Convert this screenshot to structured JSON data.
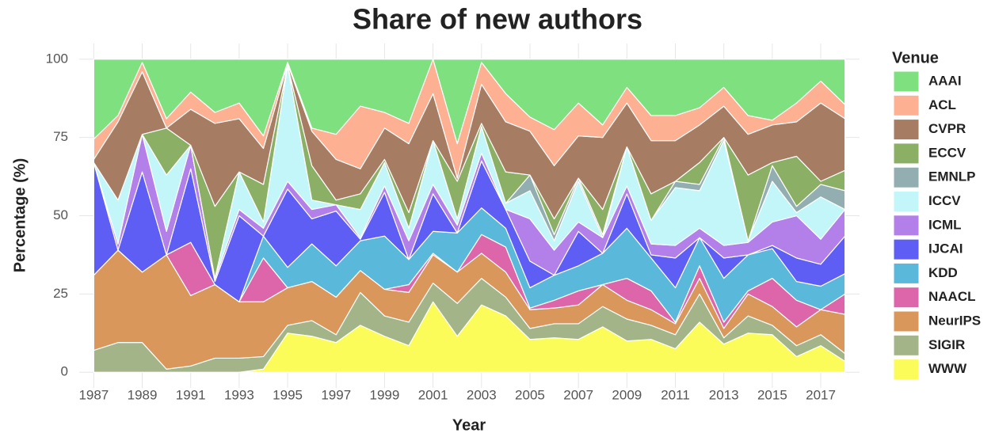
{
  "chart_data": {
    "type": "stacked_area",
    "title": "Share of new authors",
    "x_label": "Year",
    "y_label": "Percentage (%)",
    "legend_title": "Venue",
    "legend_position": "right",
    "grid": true,
    "x": [
      1987,
      1988,
      1989,
      1990,
      1991,
      1992,
      1993,
      1994,
      1995,
      1996,
      1997,
      1998,
      1999,
      2000,
      2001,
      2002,
      2003,
      2004,
      2005,
      2006,
      2007,
      2008,
      2009,
      2010,
      2011,
      2012,
      2013,
      2014,
      2015,
      2016,
      2017,
      2018
    ],
    "xlim": [
      1986.4,
      2018.6
    ],
    "xticks": [
      1987,
      1989,
      1991,
      1993,
      1995,
      1997,
      1999,
      2001,
      2003,
      2005,
      2007,
      2009,
      2011,
      2013,
      2015,
      2017
    ],
    "ylim": [
      -5,
      105
    ],
    "yticks": [
      0,
      25,
      50,
      75,
      100
    ],
    "series": [
      {
        "name": "AAAI",
        "color": "#7fe07f",
        "values": [
          25.5,
          18,
          1,
          19,
          10.5,
          17,
          14,
          24.5,
          1,
          22,
          24,
          15,
          17,
          20.5,
          0,
          27,
          1,
          11,
          18.5,
          22.5,
          14,
          21,
          9,
          18,
          18,
          15.5,
          9,
          18,
          19.5,
          14,
          7,
          14.5
        ]
      },
      {
        "name": "ACL",
        "color": "#fdb092",
        "values": [
          6.5,
          2,
          3,
          3,
          5.5,
          3.5,
          5,
          4,
          0.5,
          1,
          8,
          20,
          5,
          6.5,
          11,
          11,
          7,
          9,
          4.5,
          11.5,
          10.5,
          4,
          5,
          8,
          8,
          5.5,
          6,
          6,
          1.5,
          6,
          7,
          4.5
        ]
      },
      {
        "name": "CVPR",
        "color": "#a67c63",
        "values": [
          1,
          25,
          20,
          0,
          11.5,
          26.5,
          17,
          11.5,
          0.5,
          11,
          13,
          8,
          10,
          22,
          15,
          1,
          12.5,
          16,
          14,
          17,
          13.5,
          23,
          14,
          17,
          13,
          12,
          10,
          13,
          12,
          11,
          25,
          16.5
        ]
      },
      {
        "name": "ECCV",
        "color": "#8bb065",
        "values": [
          0,
          0,
          0,
          15,
          0,
          23,
          0,
          12,
          0,
          11,
          1.5,
          5,
          1,
          5,
          0,
          12,
          1,
          10,
          0,
          5,
          0,
          8,
          0,
          8.5,
          0,
          7,
          0,
          21,
          1,
          16,
          1,
          6.5
        ]
      },
      {
        "name": "EMNLP",
        "color": "#93aeb0",
        "values": [
          0,
          0,
          0,
          0,
          0,
          0,
          0,
          0,
          0,
          0,
          0,
          0,
          0,
          0,
          0,
          0,
          0,
          0,
          5,
          2,
          1,
          1,
          0,
          0,
          2,
          2,
          1,
          0,
          5,
          2,
          4,
          6
        ]
      },
      {
        "name": "ICCV",
        "color": "#c3f6f8",
        "values": [
          0,
          14,
          0,
          18,
          0,
          0,
          12,
          2,
          37,
          3,
          0,
          9,
          7.5,
          4,
          14,
          2,
          8.5,
          2,
          9,
          3,
          13,
          0,
          12.5,
          7.5,
          18.5,
          12,
          33.5,
          0.5,
          13,
          1,
          13.5,
          0
        ]
      },
      {
        "name": "ICML",
        "color": "#b37fe8",
        "values": [
          0,
          2,
          12,
          7.5,
          7.5,
          1,
          2,
          2.5,
          2.5,
          3,
          2,
          0.5,
          2,
          6,
          3,
          2.5,
          2.5,
          0,
          13.5,
          8,
          3,
          5,
          2.5,
          3.5,
          4,
          3,
          4,
          4,
          7.5,
          13.5,
          8,
          8.5
        ]
      },
      {
        "name": "IJCAI",
        "color": "#5e5ef4",
        "values": [
          36,
          0,
          32,
          0,
          23.5,
          1,
          27.5,
          0,
          25,
          8,
          17.5,
          0.5,
          14,
          0,
          12,
          0,
          15,
          6,
          8.5,
          0,
          11,
          0,
          11,
          1,
          9.5,
          0,
          6.5,
          0,
          1,
          7.5,
          7,
          12
        ]
      },
      {
        "name": "KDD",
        "color": "#5ab8da",
        "values": [
          0,
          0,
          0,
          0,
          0,
          0,
          0,
          7,
          6.5,
          12,
          10,
          9.5,
          17,
          8,
          7,
          12.5,
          8.5,
          6,
          6.5,
          8,
          8,
          10,
          16,
          10.5,
          11,
          9,
          14,
          11.5,
          9.5,
          6,
          7.5,
          6.5
        ]
      },
      {
        "name": "NAACL",
        "color": "#dd66aa",
        "values": [
          0,
          0,
          0,
          0,
          17,
          0,
          0,
          14,
          0,
          0,
          0,
          0,
          0,
          2.5,
          0.5,
          0,
          6,
          8,
          0.5,
          2.5,
          4.5,
          0,
          7,
          6,
          0.5,
          4,
          2,
          1,
          9,
          8.5,
          0,
          6.5
        ]
      },
      {
        "name": "NeurIPS",
        "color": "#d9975c",
        "values": [
          24,
          29.5,
          22.5,
          36.5,
          22.5,
          23.5,
          18,
          17.5,
          12,
          12.5,
          12,
          7,
          8.5,
          9.5,
          9,
          10,
          8,
          8,
          6,
          5,
          6,
          7,
          6,
          5,
          3.5,
          5,
          3,
          7,
          6,
          6,
          8,
          12.5
        ]
      },
      {
        "name": "SIGIR",
        "color": "#a3b489",
        "values": [
          7,
          9.5,
          9.5,
          1,
          2,
          4.5,
          4.5,
          4,
          2.5,
          5,
          2.5,
          10.5,
          6.5,
          7.5,
          6,
          10.5,
          8.5,
          6,
          3.5,
          4.5,
          5,
          6.5,
          7,
          4.5,
          4.5,
          9,
          2,
          5.5,
          3,
          3.5,
          3.5,
          2.5
        ]
      },
      {
        "name": "WWW",
        "color": "#fbfb5a",
        "values": [
          0,
          0,
          0,
          0,
          0,
          0,
          0,
          1,
          12.5,
          11.5,
          9.5,
          15,
          11.5,
          8.5,
          22.5,
          11.5,
          21.5,
          18,
          10.5,
          11,
          10.5,
          14.5,
          10,
          10.5,
          7.5,
          16,
          9,
          12.5,
          12,
          5,
          8.5,
          3.5
        ]
      }
    ]
  }
}
